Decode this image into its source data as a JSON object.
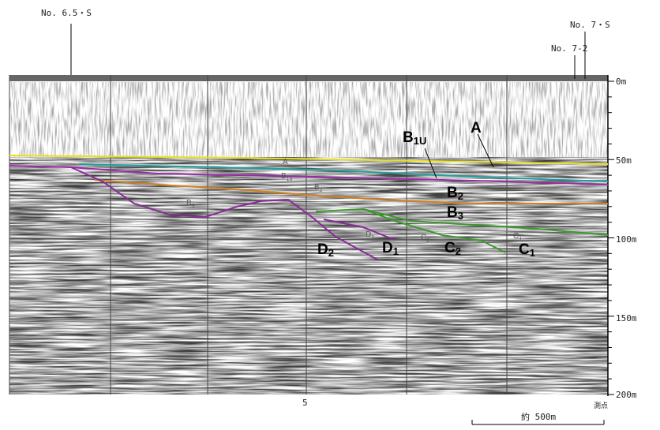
{
  "header": {
    "survey_lines": [
      "No. 6.5・S",
      "No. 7・S",
      "No. 7-2"
    ]
  },
  "depth_axis": {
    "labels": [
      "0m",
      "50m",
      "100m",
      "150m",
      "200m"
    ]
  },
  "horizons": [
    {
      "letter": "A",
      "sub": ""
    },
    {
      "letter": "B",
      "sub": "1U"
    },
    {
      "letter": "B",
      "sub": "2"
    },
    {
      "letter": "B",
      "sub": "3"
    },
    {
      "letter": "D",
      "sub": "2"
    },
    {
      "letter": "D",
      "sub": "1"
    },
    {
      "letter": "C",
      "sub": "2"
    },
    {
      "letter": "C",
      "sub": "1"
    }
  ],
  "inline_labels": [
    {
      "letter": "A",
      "sub": ""
    },
    {
      "letter": "B",
      "sub": "1u"
    },
    {
      "letter": "B",
      "sub": "2"
    },
    {
      "letter": "B",
      "sub": "3"
    },
    {
      "letter": "D",
      "sub": "1"
    },
    {
      "letter": "C",
      "sub": "2"
    },
    {
      "letter": "C",
      "sub": "1"
    }
  ],
  "footer": {
    "station": "5",
    "station_label": "測点",
    "scale": "約 500m"
  }
}
